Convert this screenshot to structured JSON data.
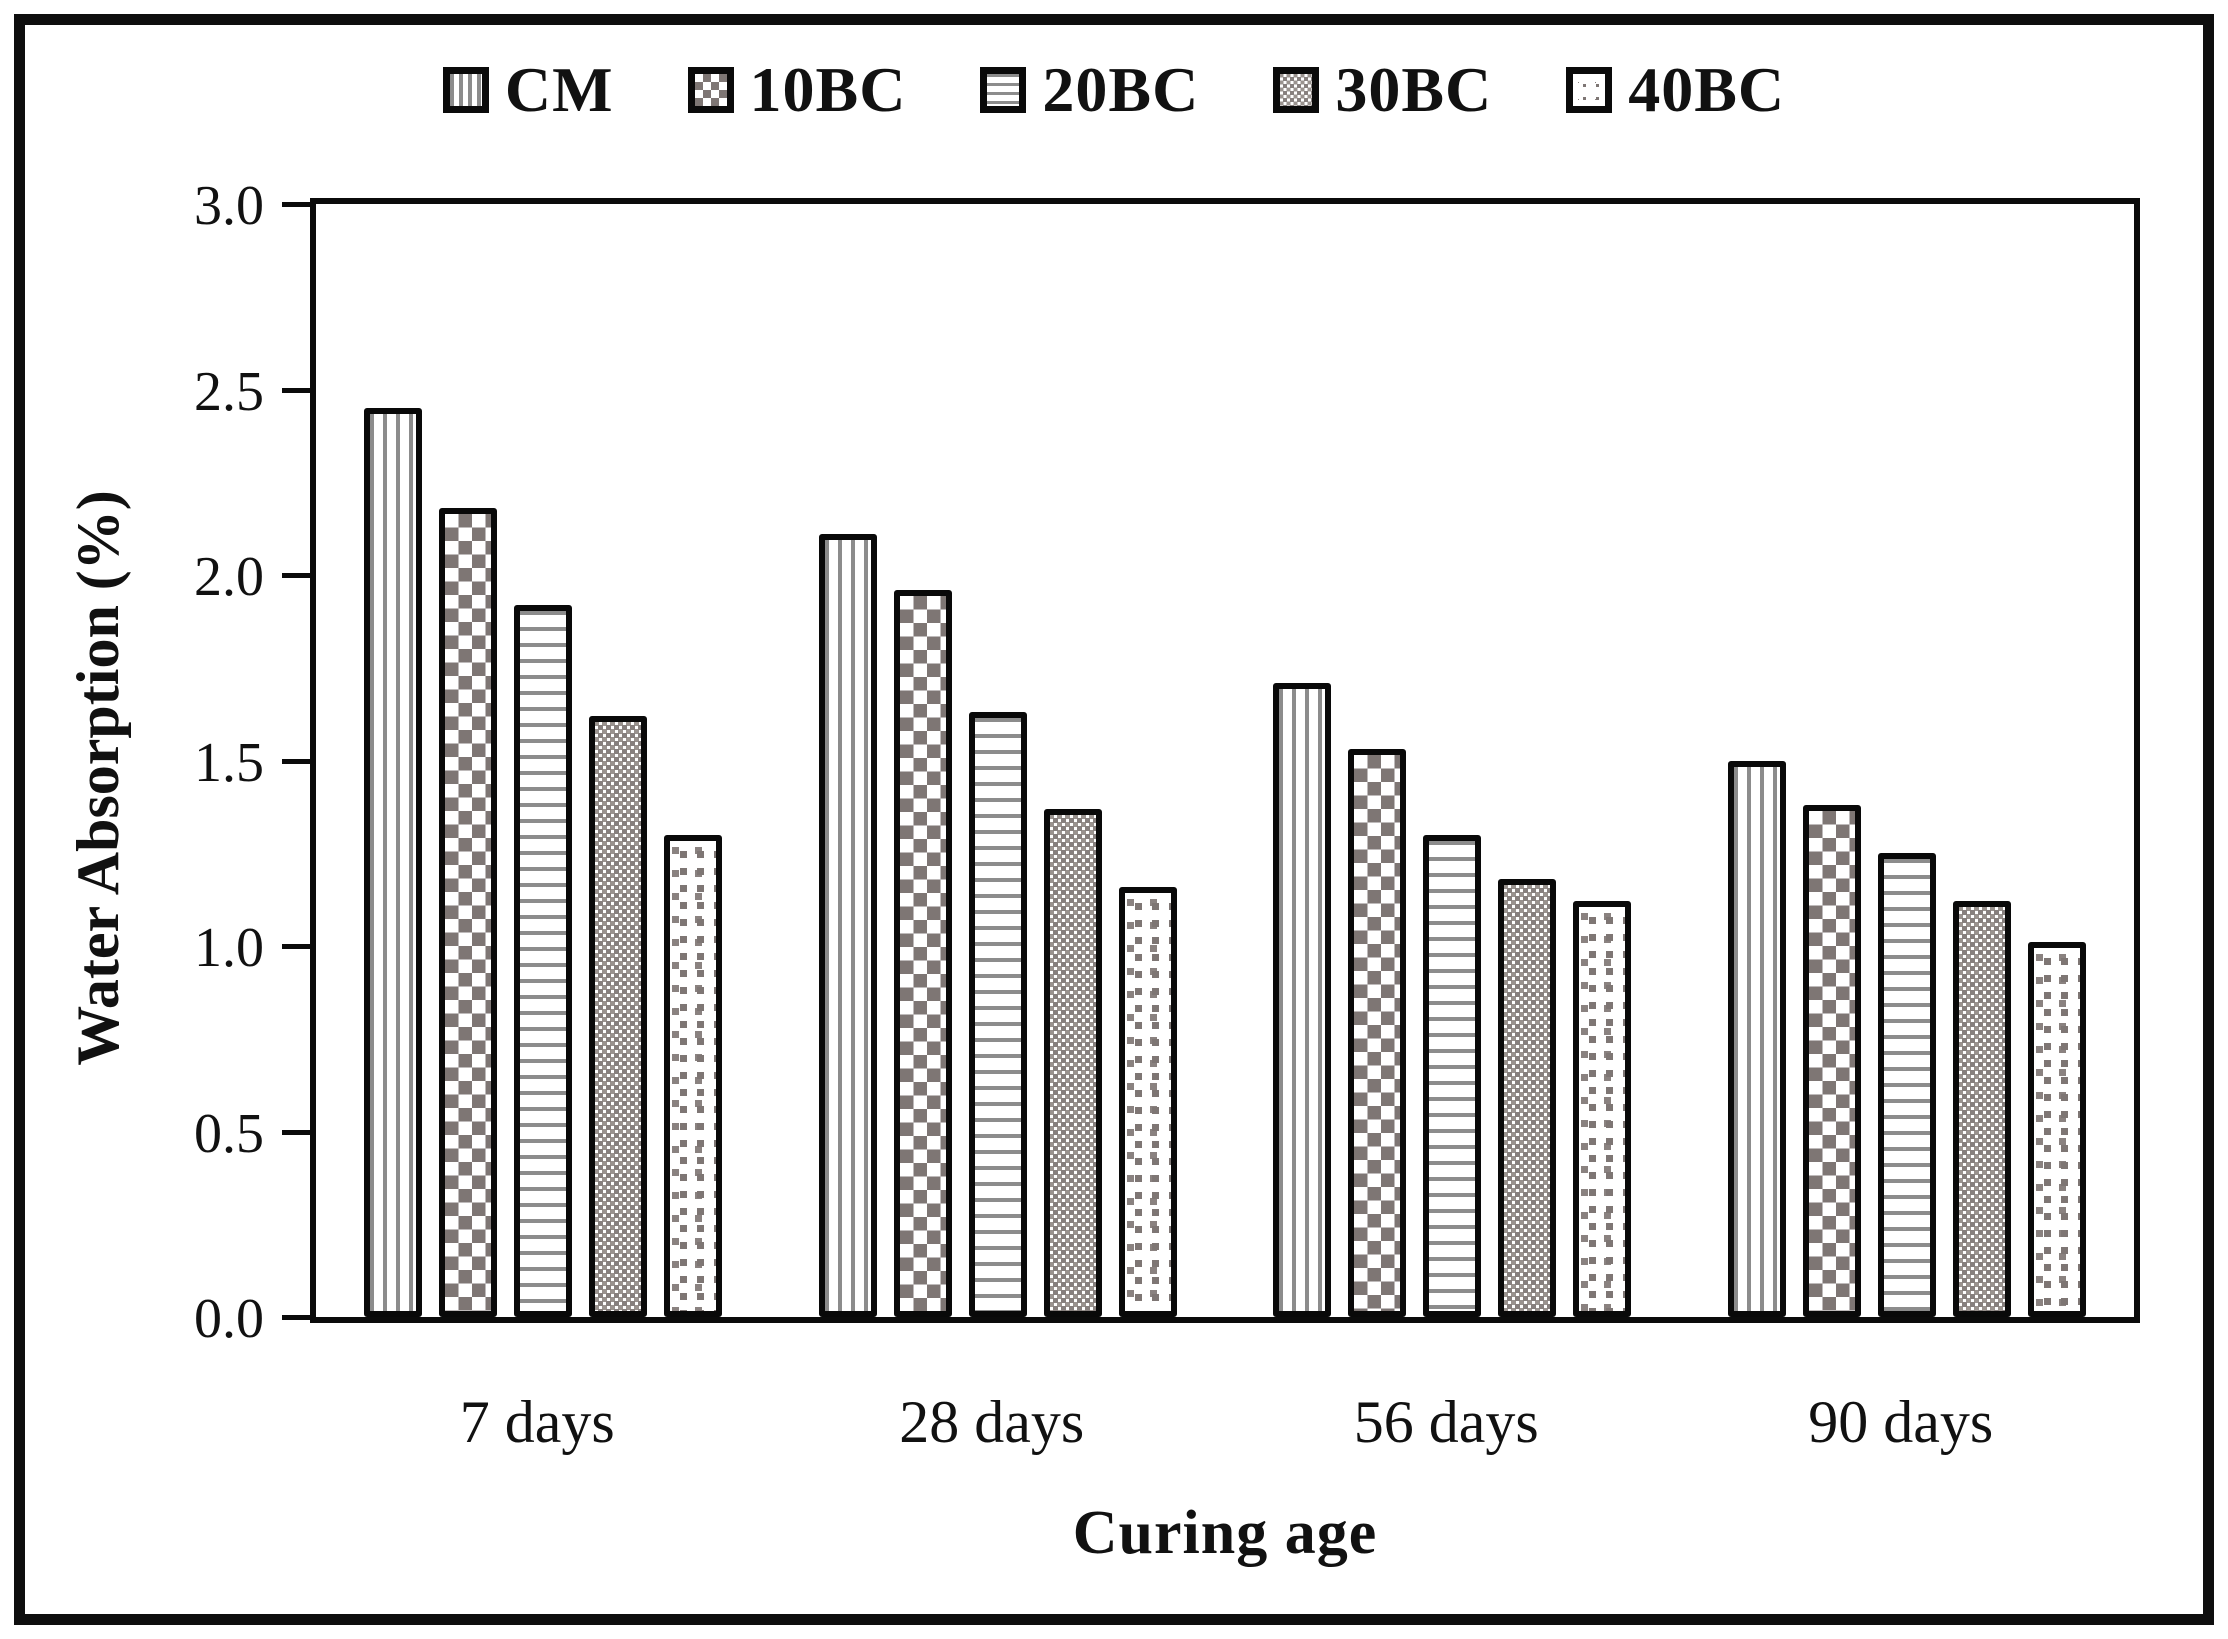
{
  "chart_data": {
    "type": "bar",
    "title": "",
    "xlabel": "Curing age",
    "ylabel": "Water Absorption (%)",
    "categories": [
      "7 days",
      "28 days",
      "56 days",
      "90 days"
    ],
    "series": [
      {
        "name": "CM",
        "pattern": "vertical-stripes",
        "pattern_color": "#8c8c8c",
        "values": [
          2.45,
          2.11,
          1.71,
          1.5
        ]
      },
      {
        "name": "10BC",
        "pattern": "checkerboard",
        "pattern_color": "#7e7674",
        "values": [
          2.18,
          1.96,
          1.53,
          1.38
        ]
      },
      {
        "name": "20BC",
        "pattern": "horizontal-stripes",
        "pattern_color": "#8c8c8c",
        "values": [
          1.92,
          1.63,
          1.3,
          1.25
        ]
      },
      {
        "name": "30BC",
        "pattern": "fine-dot-grid",
        "pattern_color": "#87807e",
        "values": [
          1.62,
          1.37,
          1.18,
          1.12
        ]
      },
      {
        "name": "40BC",
        "pattern": "scattered-squares",
        "pattern_color": "#7e7674",
        "values": [
          1.3,
          1.16,
          1.12,
          1.01
        ]
      }
    ],
    "ylim": [
      0.0,
      3.0
    ],
    "yticks": [
      "3.0",
      "2.5",
      "2.0",
      "1.5",
      "1.0",
      "0.5",
      "0.0"
    ],
    "grid": "off",
    "legend_position": "top-center",
    "frame_color": "#0e0e0e",
    "bar_outline_color": "#090909"
  }
}
